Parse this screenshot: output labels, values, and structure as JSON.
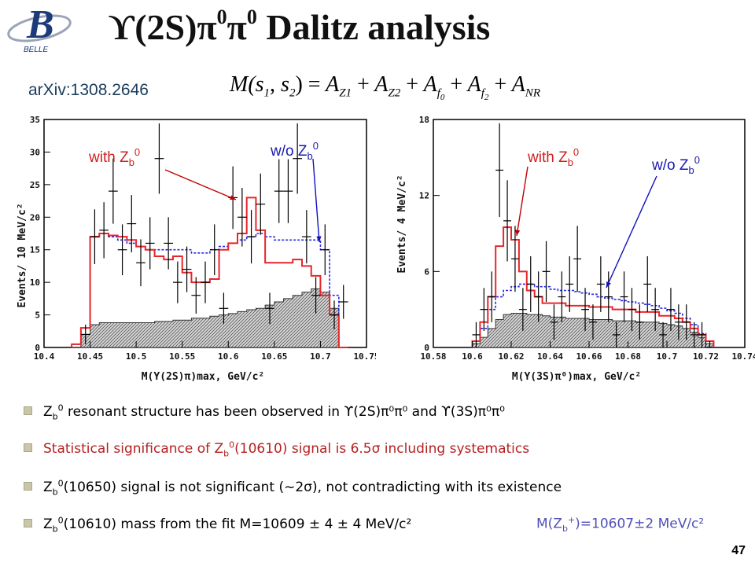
{
  "title": "ϒ(2S)π⁰π⁰ Dalitz analysis",
  "title_parts": {
    "main": "ϒ(2S)π",
    "sup1": "0",
    "pi": "π",
    "sup2": "0",
    "rest": " Dalitz analysis"
  },
  "logo": {
    "label": "BELLE"
  },
  "arxiv": "arXiv:1308.2646",
  "formula": "M(s1, s2) = A_Z1 + A_Z2 + A_f0 + A_f2 + A_NR",
  "colors": {
    "fit_with": "#e8262a",
    "fit_without": "#2a2ae8",
    "background": "#9a9a9a",
    "arrow_red": "#c00000",
    "arrow_blue": "#1010c0",
    "bullet_red": "#b52020",
    "extra_blue": "#5050b8"
  },
  "chart_data": [
    {
      "type": "histogram",
      "xlabel": "M(Y(2S)π)max, GeV/c²",
      "ylabel": "Events/ 10 MeV/c²",
      "xlim": [
        10.4,
        10.75
      ],
      "ylim": [
        0,
        35
      ],
      "xticks": [
        "10.4",
        "10.45",
        "10.5",
        "10.55",
        "10.6",
        "10.65",
        "10.7",
        "10.75"
      ],
      "yticks": [
        "0",
        "5",
        "10",
        "15",
        "20",
        "25",
        "30",
        "35"
      ],
      "annotations": {
        "with": "with Zb0",
        "without": "w/o Zb0"
      },
      "bin_edges": [
        10.43,
        10.44,
        10.45,
        10.46,
        10.47,
        10.48,
        10.49,
        10.5,
        10.51,
        10.52,
        10.53,
        10.54,
        10.55,
        10.56,
        10.57,
        10.58,
        10.59,
        10.6,
        10.61,
        10.62,
        10.63,
        10.64,
        10.65,
        10.66,
        10.67,
        10.68,
        10.69,
        10.7,
        10.71,
        10.72,
        10.73
      ],
      "series": [
        {
          "name": "with Zb0",
          "values": [
            0.5,
            3,
            17,
            17.5,
            17.2,
            17,
            16.5,
            15.5,
            15,
            14,
            13.5,
            14,
            11.5,
            10,
            10,
            10.5,
            15,
            16,
            17.5,
            23,
            18,
            13,
            13,
            13,
            13.5,
            12.5,
            11,
            8,
            5,
            0
          ]
        },
        {
          "name": "w/o Zb0",
          "values": [
            0.5,
            3,
            17,
            17.5,
            17,
            16.5,
            16,
            15.5,
            15,
            15,
            15,
            15,
            15,
            14.5,
            14.5,
            15,
            15.5,
            16,
            16.5,
            17,
            17.5,
            17,
            16.5,
            16.5,
            16.5,
            16.5,
            16.5,
            15,
            8,
            0
          ]
        },
        {
          "name": "background",
          "values": [
            0,
            2,
            3.5,
            3.8,
            3.8,
            3.8,
            3.8,
            3.8,
            3.8,
            4,
            4,
            4.2,
            4.2,
            4.5,
            4.5,
            4.8,
            5,
            5.2,
            5.5,
            5.8,
            6,
            6.5,
            7,
            7.5,
            8,
            8.5,
            9,
            8.5,
            6,
            0
          ]
        }
      ],
      "data_x": [
        10.445,
        10.455,
        10.465,
        10.475,
        10.485,
        10.495,
        10.505,
        10.515,
        10.525,
        10.535,
        10.545,
        10.555,
        10.565,
        10.575,
        10.585,
        10.595,
        10.605,
        10.615,
        10.625,
        10.635,
        10.645,
        10.655,
        10.665,
        10.675,
        10.685,
        10.695,
        10.705,
        10.715,
        10.725
      ],
      "data_y": [
        2,
        17,
        18,
        24,
        15,
        19,
        13,
        16,
        29,
        16,
        10,
        12,
        8,
        10,
        15,
        6,
        23,
        20,
        17,
        22,
        6,
        24,
        24,
        29,
        17,
        8,
        15,
        5,
        7
      ],
      "data_err": [
        1.5,
        4.2,
        4.3,
        5,
        3.9,
        4.4,
        3.6,
        4,
        5.4,
        4,
        3.2,
        3.5,
        2.8,
        3.2,
        3.9,
        2.4,
        4.8,
        4.5,
        4.1,
        4.7,
        2.4,
        4.9,
        4.9,
        5.4,
        4.1,
        2.8,
        3.9,
        2.2,
        2.6
      ]
    },
    {
      "type": "histogram",
      "xlabel": "M(Y(3S)π⁰)max, GeV/c²",
      "ylabel": "Events/ 4 MeV/c²",
      "xlim": [
        10.58,
        10.74
      ],
      "ylim": [
        0,
        18
      ],
      "xticks": [
        "10.58",
        "10.6",
        "10.62",
        "10.64",
        "10.66",
        "10.68",
        "10.7",
        "10.72",
        "10.74"
      ],
      "yticks": [
        "0",
        "6",
        "12",
        "18"
      ],
      "annotations": {
        "with": "with Zb0",
        "without": "w/o Zb0"
      },
      "bin_edges": [
        10.6,
        10.604,
        10.608,
        10.612,
        10.616,
        10.62,
        10.624,
        10.628,
        10.632,
        10.636,
        10.64,
        10.644,
        10.648,
        10.652,
        10.656,
        10.66,
        10.664,
        10.668,
        10.672,
        10.676,
        10.68,
        10.684,
        10.688,
        10.692,
        10.696,
        10.7,
        10.704,
        10.708,
        10.712,
        10.716,
        10.72,
        10.724
      ],
      "series": [
        {
          "name": "with Zb0",
          "values": [
            0.5,
            2,
            4,
            8,
            9.5,
            8.5,
            6,
            4.5,
            4,
            3.5,
            3.5,
            3.5,
            3.3,
            3.3,
            3.3,
            3.2,
            3.2,
            3.2,
            3,
            3,
            3,
            2.8,
            2.8,
            2.8,
            2.5,
            2.5,
            2.3,
            2,
            1.5,
            1,
            0.5
          ]
        },
        {
          "name": "w/o Zb0",
          "values": [
            0.5,
            1.5,
            3,
            4,
            4.5,
            4.8,
            5,
            5,
            4.8,
            4.8,
            4.6,
            4.5,
            4.5,
            4.4,
            4.3,
            4.2,
            4,
            3.9,
            3.8,
            3.7,
            3.6,
            3.5,
            3.4,
            3.3,
            3.1,
            2.9,
            2.7,
            2.3,
            1.8,
            1.1,
            0.5
          ]
        },
        {
          "name": "background",
          "values": [
            0.3,
            0.8,
            1.5,
            2.2,
            2.6,
            2.7,
            2.7,
            2.6,
            2.6,
            2.5,
            2.4,
            2.4,
            2.3,
            2.3,
            2.3,
            2.2,
            2.2,
            2.2,
            2.1,
            2.1,
            2.1,
            2,
            2,
            2,
            1.9,
            1.8,
            1.7,
            1.5,
            1.2,
            0.8,
            0.3
          ]
        }
      ],
      "data_x": [
        10.602,
        10.606,
        10.61,
        10.614,
        10.618,
        10.622,
        10.626,
        10.63,
        10.634,
        10.638,
        10.642,
        10.646,
        10.65,
        10.654,
        10.658,
        10.662,
        10.666,
        10.67,
        10.674,
        10.678,
        10.682,
        10.686,
        10.69,
        10.694,
        10.698,
        10.702,
        10.706,
        10.71,
        10.714,
        10.718,
        10.722
      ],
      "data_y": [
        1,
        3,
        4,
        14,
        10,
        7,
        3,
        5,
        4,
        6,
        2,
        4,
        5,
        7,
        3,
        2,
        5,
        4,
        1,
        4,
        3,
        2,
        5,
        3,
        1,
        3,
        2,
        2,
        1,
        1,
        0
      ],
      "data_err": [
        1,
        1.7,
        2,
        3.7,
        3.2,
        2.6,
        1.7,
        2.2,
        2,
        2.4,
        1.4,
        2,
        2.2,
        2.6,
        1.7,
        1.4,
        2.2,
        2,
        1,
        2,
        1.7,
        1.4,
        2.2,
        1.7,
        1,
        1.7,
        1.4,
        1.4,
        1,
        1,
        0.5
      ]
    }
  ],
  "bullets": [
    {
      "pre": "Z",
      "sub": "b",
      "sup": "0",
      "post": " resonant structure has been observed in ϒ(2S)π⁰π⁰ and ϒ(3S)π⁰π⁰",
      "style": "normal"
    },
    {
      "pre": "Statistical significance of Z",
      "sub": "b",
      "sup": "0",
      "post": "(10610) signal is 6.5σ including systematics",
      "style": "red"
    },
    {
      "pre": "Z",
      "sub": "b",
      "sup": "0",
      "post": "(10650) signal is not significant (~2σ), not contradicting with its existence",
      "style": "normal"
    },
    {
      "pre": "Z",
      "sub": "b",
      "sup": "0",
      "post": "(10610) mass from the fit M=10609 ± 4 ± 4 MeV/c²",
      "style": "normal"
    }
  ],
  "extra": {
    "pre": "M(Z",
    "sub": "b",
    "sup": "+",
    "post": ")=10607±2 MeV/c²"
  },
  "page_number": "47"
}
